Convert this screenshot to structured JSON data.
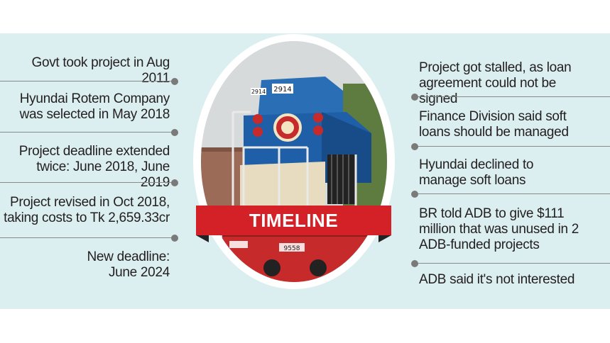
{
  "heading": "TIMELINE",
  "loco_number": "2914",
  "loco_number_lower": "2914",
  "loco_number_lower2": "9558",
  "left_items": [
    "Govt took project in Aug 2011",
    "Hyundai Rotem Company was selected in May 2018",
    "Project deadline extended twice: June 2018, June 2019",
    "Project revised in Oct 2018, taking costs to Tk 2,659.33cr",
    "New deadline: June 2024"
  ],
  "right_items": [
    "Project got stalled, as loan agreement could not be signed",
    "Finance Division said soft loans should be managed",
    "Hyundai declined to manage soft loans",
    "BR told ADB to give $111 million that was unused in 2 ADB-funded projects",
    "ADB said it's not interested"
  ],
  "colors": {
    "background": "#dbeef0",
    "ribbon": "#d42027",
    "locomotive_blue": "#1f5fa8",
    "locomotive_red": "#c62a2a"
  }
}
